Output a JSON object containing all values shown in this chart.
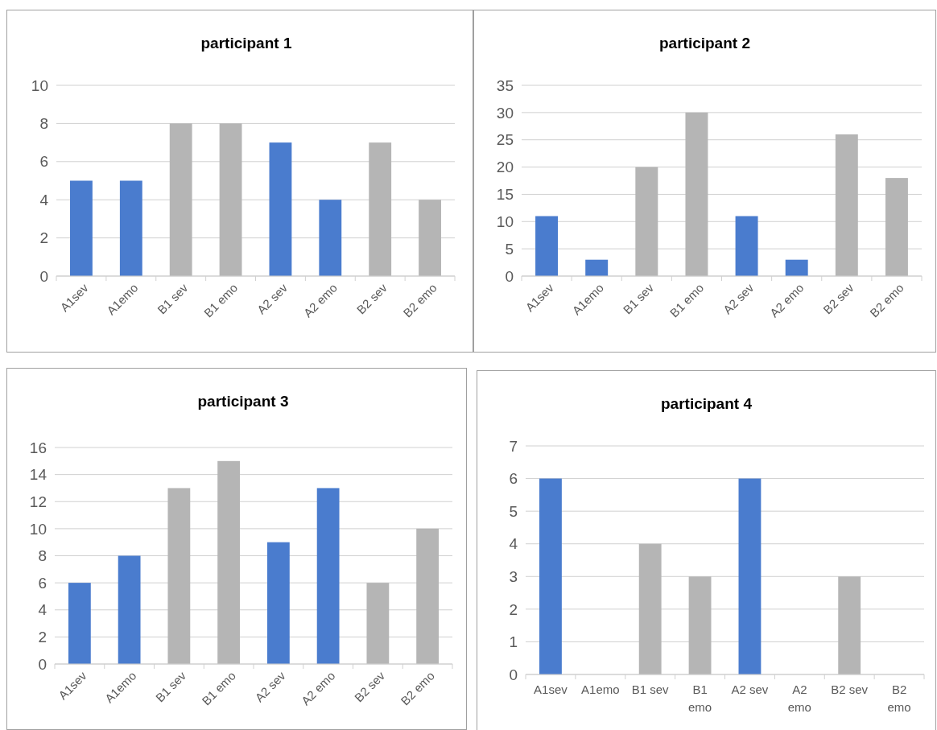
{
  "chart_data": [
    {
      "type": "bar",
      "title": "participant 1",
      "categories": [
        "A1sev",
        "A1emo",
        "B1 sev",
        "B1 emo",
        "A2 sev",
        "A2 emo",
        "B2 sev",
        "B2 emo"
      ],
      "values": [
        5,
        5,
        8,
        8,
        7,
        4,
        7,
        4
      ],
      "colors": [
        "#4a7cce",
        "#4a7cce",
        "#b5b5b5",
        "#b5b5b5",
        "#4a7cce",
        "#4a7cce",
        "#b5b5b5",
        "#b5b5b5"
      ],
      "ylim": [
        0,
        10
      ],
      "yticks": [
        0,
        2,
        4,
        6,
        8,
        10
      ],
      "grid": "y"
    },
    {
      "type": "bar",
      "title": "participant 2",
      "categories": [
        "A1sev",
        "A1emo",
        "B1 sev",
        "B1 emo",
        "A2 sev",
        "A2 emo",
        "B2 sev",
        "B2 emo"
      ],
      "values": [
        11,
        3,
        20,
        30,
        11,
        3,
        26,
        18
      ],
      "colors": [
        "#4a7cce",
        "#4a7cce",
        "#b5b5b5",
        "#b5b5b5",
        "#4a7cce",
        "#4a7cce",
        "#b5b5b5",
        "#b5b5b5"
      ],
      "ylim": [
        0,
        35
      ],
      "yticks": [
        0,
        5,
        10,
        15,
        20,
        25,
        30,
        35
      ],
      "grid": "y"
    },
    {
      "type": "bar",
      "title": "participant 3",
      "categories": [
        "A1sev",
        "A1emo",
        "B1 sev",
        "B1 emo",
        "A2 sev",
        "A2 emo",
        "B2 sev",
        "B2 emo"
      ],
      "values": [
        6,
        8,
        13,
        15,
        9,
        13,
        6,
        10
      ],
      "colors": [
        "#4a7cce",
        "#4a7cce",
        "#b5b5b5",
        "#b5b5b5",
        "#4a7cce",
        "#4a7cce",
        "#b5b5b5",
        "#b5b5b5"
      ],
      "ylim": [
        0,
        16
      ],
      "yticks": [
        0,
        2,
        4,
        6,
        8,
        10,
        12,
        14,
        16
      ],
      "grid": "y"
    },
    {
      "type": "bar",
      "title": "participant 4",
      "categories": [
        "A1sev",
        "A1emo",
        "B1 sev",
        "B1 emo",
        "A2 sev",
        "A2 emo",
        "B2 sev",
        "B2 emo"
      ],
      "values": [
        6,
        0,
        4,
        3,
        6,
        0,
        3,
        0
      ],
      "colors": [
        "#4a7cce",
        "#4a7cce",
        "#b5b5b5",
        "#b5b5b5",
        "#4a7cce",
        "#4a7cce",
        "#b5b5b5",
        "#b5b5b5"
      ],
      "ylim": [
        0,
        7
      ],
      "yticks": [
        0,
        1,
        2,
        3,
        4,
        5,
        6,
        7
      ],
      "grid": "y"
    }
  ]
}
